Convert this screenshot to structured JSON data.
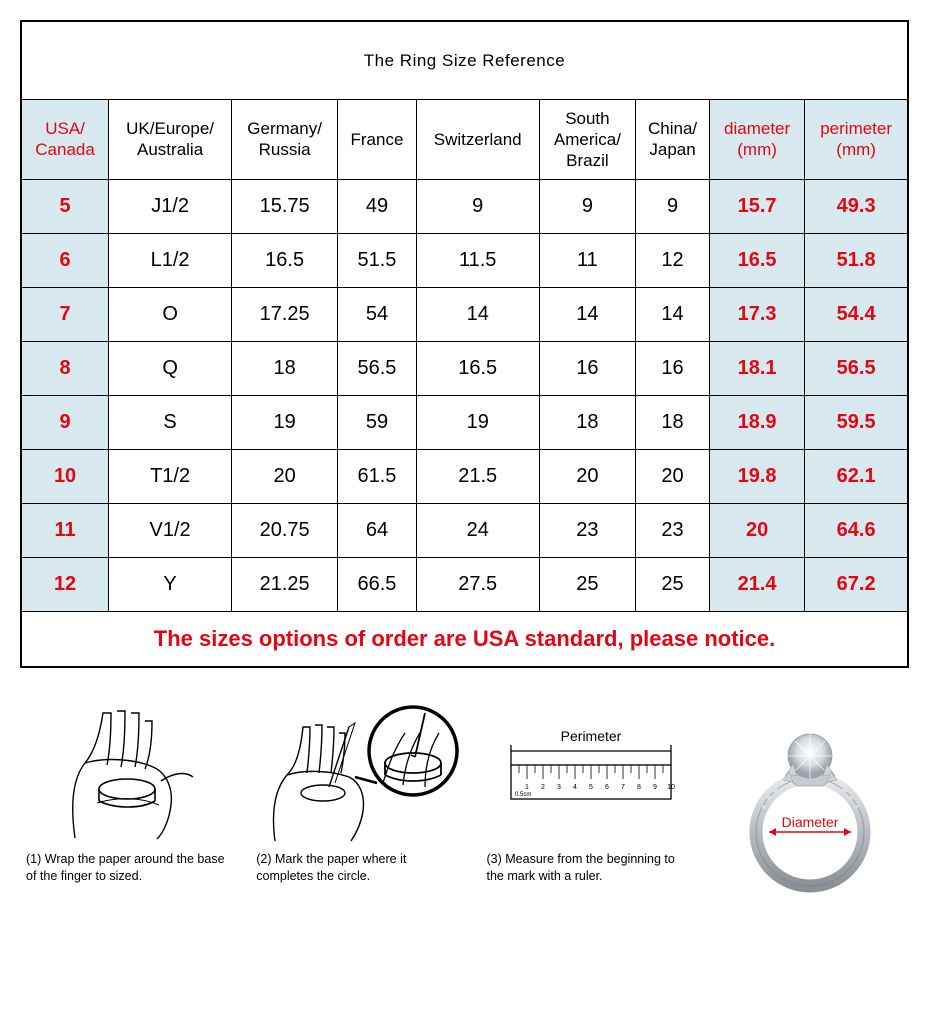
{
  "title": "The Ring Size Reference",
  "table": {
    "columns": [
      {
        "label": "USA/\nCanada",
        "highlight": true,
        "red": true
      },
      {
        "label": "UK/Europe/\nAustralia",
        "highlight": false,
        "red": false
      },
      {
        "label": "Germany/\nRussia",
        "highlight": false,
        "red": false
      },
      {
        "label": "France",
        "highlight": false,
        "red": false
      },
      {
        "label": "Switzerland",
        "highlight": false,
        "red": false
      },
      {
        "label": "South\nAmerica/\nBrazil",
        "highlight": false,
        "red": false
      },
      {
        "label": "China/\nJapan",
        "highlight": false,
        "red": false
      },
      {
        "label": "diameter\n(mm)",
        "highlight": true,
        "red": true
      },
      {
        "label": "perimeter\n(mm)",
        "highlight": true,
        "red": true
      }
    ],
    "rows": [
      [
        "5",
        "J1/2",
        "15.75",
        "49",
        "9",
        "9",
        "9",
        "15.7",
        "49.3"
      ],
      [
        "6",
        "L1/2",
        "16.5",
        "51.5",
        "11.5",
        "11",
        "12",
        "16.5",
        "51.8"
      ],
      [
        "7",
        "O",
        "17.25",
        "54",
        "14",
        "14",
        "14",
        "17.3",
        "54.4"
      ],
      [
        "8",
        "Q",
        "18",
        "56.5",
        "16.5",
        "16",
        "16",
        "18.1",
        "56.5"
      ],
      [
        "9",
        "S",
        "19",
        "59",
        "19",
        "18",
        "18",
        "18.9",
        "59.5"
      ],
      [
        "10",
        "T1/2",
        "20",
        "61.5",
        "21.5",
        "20",
        "20",
        "19.8",
        "62.1"
      ],
      [
        "11",
        "V1/2",
        "20.75",
        "64",
        "24",
        "23",
        "23",
        "20",
        "64.6"
      ],
      [
        "12",
        "Y",
        "21.25",
        "66.5",
        "27.5",
        "25",
        "25",
        "21.4",
        "67.2"
      ]
    ],
    "highlight_cols": [
      0,
      7,
      8
    ],
    "red_cols": [
      0,
      7,
      8
    ],
    "highlight_color": "#d7e8ee",
    "red_color": "#e30613",
    "border_color": "#000000",
    "header_fontsize": 17,
    "cell_fontsize": 20,
    "title_fontsize": 32
  },
  "notice": "The sizes options of order are USA standard, please notice.",
  "instructions": {
    "steps": [
      {
        "num": "(1)",
        "text": "Wrap the paper around the base of the finger to sized."
      },
      {
        "num": "(2)",
        "text": "Mark the paper where it completes the circle."
      },
      {
        "num": "(3)",
        "text": "Measure from the beginning to the mark with a ruler."
      }
    ],
    "ruler_label": "Perimeter",
    "ring_label": "Diameter",
    "label_color": "#000000",
    "ring_label_color": "#e30613"
  }
}
